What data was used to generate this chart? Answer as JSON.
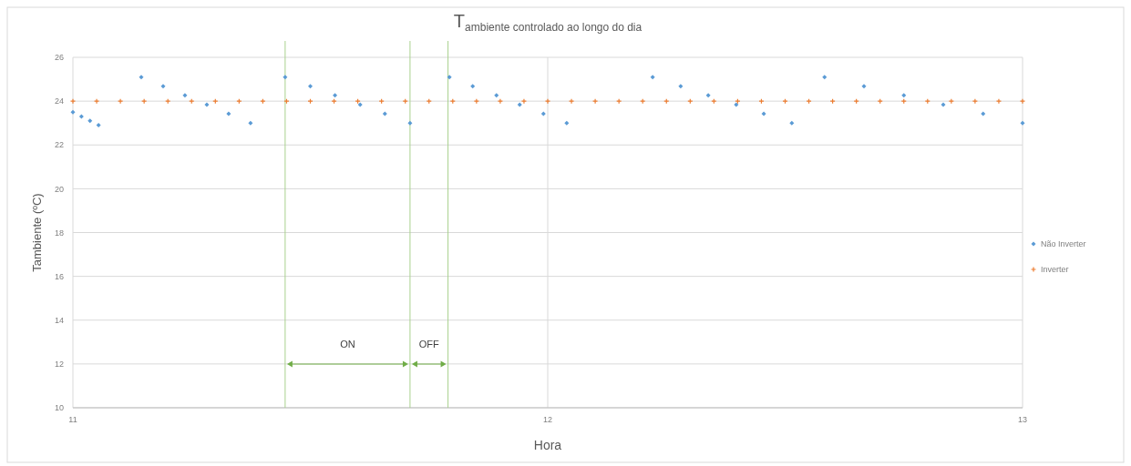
{
  "chart_data": {
    "type": "scatter",
    "title": "T$_{ambiente controlado ao longo do dia}$",
    "xlabel": "Hora",
    "ylabel": "Tambiente (ºC)",
    "xlim": [
      11,
      13
    ],
    "xticks": [
      11,
      12,
      13
    ],
    "ylim": [
      10,
      26
    ],
    "yticks": [
      10,
      12,
      14,
      16,
      18,
      20,
      22,
      24,
      26
    ],
    "grid": true,
    "legend": "right",
    "series": [
      {
        "name": "Não Inverter",
        "color": "#5b9bd5",
        "marker": "diamond",
        "x": [
          11.0,
          11.018,
          11.036,
          11.054,
          11.144,
          11.19,
          11.236,
          11.282,
          11.328,
          11.374,
          11.447,
          11.5,
          11.552,
          11.605,
          11.657,
          11.71,
          11.793,
          11.842,
          11.892,
          11.941,
          11.991,
          12.04,
          12.221,
          12.28,
          12.338,
          12.397,
          12.455,
          12.514,
          12.583,
          12.666,
          12.75,
          12.833,
          12.917,
          13.0
        ],
        "values": [
          23.5,
          23.3,
          23.1,
          22.9,
          25.1,
          24.68,
          24.26,
          23.84,
          23.42,
          23.0,
          25.1,
          24.68,
          24.26,
          23.84,
          23.42,
          23.0,
          25.1,
          24.68,
          24.26,
          23.84,
          23.42,
          23.0,
          25.1,
          24.68,
          24.26,
          23.84,
          23.42,
          23.0,
          25.1,
          24.68,
          24.26,
          23.84,
          23.42,
          23.0
        ]
      },
      {
        "name": "Inverter",
        "color": "#ed7d31",
        "marker": "cross",
        "x": [
          11.0,
          11.05,
          11.1,
          11.15,
          11.2,
          11.25,
          11.3,
          11.35,
          11.4,
          11.45,
          11.5,
          11.55,
          11.6,
          11.65,
          11.7,
          11.75,
          11.8,
          11.85,
          11.9,
          11.95,
          12.0,
          12.05,
          12.1,
          12.15,
          12.2,
          12.25,
          12.3,
          12.35,
          12.4,
          12.45,
          12.5,
          12.55,
          12.6,
          12.65,
          12.7,
          12.75,
          12.8,
          12.85,
          12.9,
          12.95,
          13.0
        ],
        "values": [
          24,
          24,
          24,
          24,
          24,
          24,
          24,
          24,
          24,
          24,
          24,
          24,
          24,
          24,
          24,
          24,
          24,
          24,
          24,
          24,
          24,
          24,
          24,
          24,
          24,
          24,
          24,
          24,
          24,
          24,
          24,
          24,
          24,
          24,
          24,
          24,
          24,
          24,
          24,
          24,
          24
        ]
      }
    ],
    "ref_lines": [
      {
        "axis": "x",
        "value": 11.447,
        "color": "#a9d18e"
      },
      {
        "axis": "x",
        "value": 11.71,
        "color": "#a9d18e"
      },
      {
        "axis": "x",
        "value": 11.79,
        "color": "#a9d18e"
      }
    ],
    "annotations": [
      "ON",
      "OFF"
    ]
  }
}
